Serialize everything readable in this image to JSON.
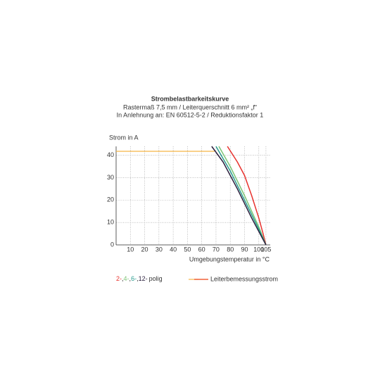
{
  "chart_data": {
    "type": "line",
    "title": "Strombelastbarkeitskurve",
    "subtitle": [
      "Rastermaß 7,5 mm / Leiterquerschnitt 6 mm² „f“",
      "In Anlehnung an: EN 60512-5-2 / Reduktionsfaktor 1"
    ],
    "y_label": "Strom in A",
    "x_label": "Umgebungstemperatur in °C",
    "xlim": [
      0,
      108
    ],
    "ylim": [
      0,
      44
    ],
    "xticks": [
      10,
      20,
      30,
      40,
      50,
      60,
      70,
      80,
      90,
      100,
      105
    ],
    "yticks": [
      0,
      10,
      20,
      30,
      40
    ],
    "grid": true,
    "series": [
      {
        "name": "2-",
        "color": "#e8322e",
        "x": [
          78,
          85,
          90,
          95,
          100,
          103,
          105
        ],
        "values": [
          44,
          37,
          31,
          22,
          12,
          5,
          0
        ]
      },
      {
        "name": "4-",
        "color": "#7cc576",
        "x": [
          72,
          80,
          90,
          95,
          100,
          105
        ],
        "values": [
          44,
          35,
          22,
          15,
          8,
          0
        ]
      },
      {
        "name": "6-",
        "color": "#2a9c8f",
        "x": [
          70,
          80,
          90,
          100,
          105
        ],
        "values": [
          44,
          33,
          20,
          7,
          0
        ]
      },
      {
        "name": "12-",
        "color": "#2a1f3d",
        "x": [
          67,
          75,
          85,
          95,
          105
        ],
        "values": [
          44,
          37,
          25,
          12,
          0
        ]
      }
    ],
    "legend_separator": ",",
    "legend_suffix": "polig",
    "rated": {
      "name": "Leiterbemessungsstrom",
      "color": "#f5b545",
      "legend_color": "#f0603a",
      "x": [
        0,
        69
      ],
      "values": [
        41.8,
        41.8
      ]
    }
  }
}
